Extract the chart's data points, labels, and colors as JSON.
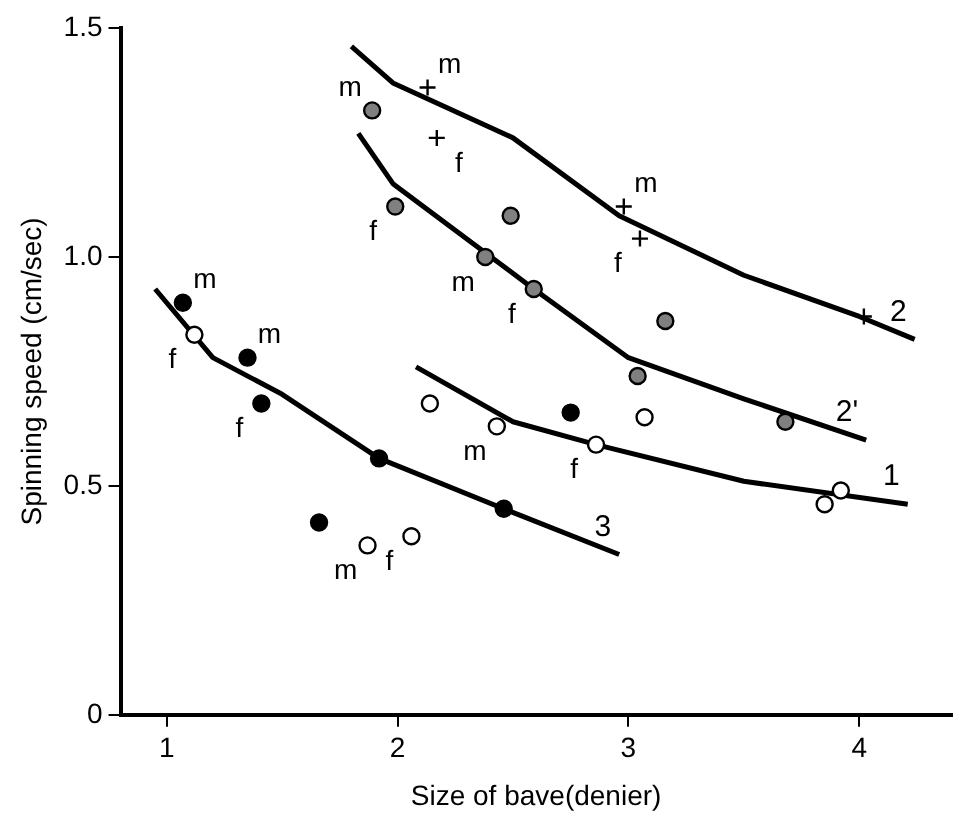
{
  "chart_data": {
    "type": "scatter",
    "xlabel": "Size of bave(denier)",
    "ylabel": "Spinning speed (cm/sec)",
    "xlim": [
      0.8,
      4.4
    ],
    "ylim": [
      0,
      1.5
    ],
    "xticks": [
      1,
      2,
      3,
      4
    ],
    "yticks": [
      0,
      {
        "value": 0.5,
        "label": "0.5"
      },
      {
        "value": 1,
        "label": "1.0"
      },
      1.5
    ],
    "grid": false,
    "legend": false,
    "series": [
      {
        "type": "scatter",
        "marker": "circle",
        "color": "#ffffff",
        "x": [
          1.12,
          1.87,
          2.06,
          2.14,
          2.43,
          2.86,
          3.07,
          3.85,
          3.92
        ],
        "values": [
          0.83,
          0.37,
          0.39,
          0.68,
          0.63,
          0.59,
          0.65,
          0.46,
          0.49
        ]
      },
      {
        "type": "scatter",
        "marker": "cross",
        "color": "#000000",
        "x": [
          2.13,
          2.17,
          2.98,
          3.05,
          4.02
        ],
        "values": [
          1.37,
          1.26,
          1.11,
          1.04,
          0.87
        ]
      },
      {
        "type": "scatter",
        "marker": "circle",
        "color": "#808080",
        "x": [
          1.89,
          1.99,
          2.38,
          2.49,
          2.59,
          3.04,
          3.16,
          3.68
        ],
        "values": [
          1.32,
          1.11,
          1.0,
          1.09,
          0.93,
          0.74,
          0.86,
          0.64
        ]
      },
      {
        "type": "scatter",
        "marker": "circle",
        "color": "#000000",
        "x": [
          1.07,
          1.35,
          1.41,
          1.66,
          1.92,
          2.46,
          2.75
        ],
        "values": [
          0.9,
          0.78,
          0.68,
          0.42,
          0.56,
          0.45,
          0.66
        ]
      },
      {
        "type": "line",
        "name": "1",
        "color": "#000000",
        "x": [
          2.08,
          2.5,
          2.86,
          3.5,
          4.21
        ],
        "values": [
          0.76,
          0.64,
          0.59,
          0.51,
          0.46
        ]
      },
      {
        "type": "line",
        "name": "2",
        "color": "#000000",
        "x": [
          1.8,
          1.98,
          2.5,
          2.96,
          3.5,
          4.0,
          4.24
        ],
        "values": [
          1.46,
          1.38,
          1.26,
          1.09,
          0.96,
          0.87,
          0.82
        ]
      },
      {
        "type": "line",
        "name": "2'",
        "color": "#000000",
        "x": [
          1.83,
          1.98,
          2.59,
          3.0,
          3.5,
          4.03
        ],
        "values": [
          1.27,
          1.16,
          0.93,
          0.78,
          0.69,
          0.6
        ]
      },
      {
        "type": "line",
        "name": "3",
        "color": "#000000",
        "x": [
          0.95,
          1.2,
          1.5,
          1.92,
          2.46,
          2.96
        ],
        "values": [
          0.93,
          0.78,
          0.7,
          0.56,
          0.45,
          0.35
        ]
      }
    ],
    "annotations": [
      {
        "text": "m",
        "x": 1.07,
        "y": 0.9
      },
      {
        "text": "f",
        "x": 1.12,
        "y": 0.83
      },
      {
        "text": "m",
        "x": 1.35,
        "y": 0.78
      },
      {
        "text": "f",
        "x": 1.41,
        "y": 0.68
      },
      {
        "text": "m",
        "x": 1.89,
        "y": 1.32
      },
      {
        "text": "f",
        "x": 1.99,
        "y": 1.11
      },
      {
        "text": "m",
        "x": 2.13,
        "y": 1.37
      },
      {
        "text": "f",
        "x": 2.17,
        "y": 1.26
      },
      {
        "text": "m",
        "x": 2.38,
        "y": 1.0
      },
      {
        "text": "f",
        "x": 2.59,
        "y": 0.93
      },
      {
        "text": "m",
        "x": 2.98,
        "y": 1.11
      },
      {
        "text": "f",
        "x": 3.05,
        "y": 1.04
      },
      {
        "text": "m",
        "x": 1.87,
        "y": 0.37
      },
      {
        "text": "f",
        "x": 2.06,
        "y": 0.39
      },
      {
        "text": "m",
        "x": 2.43,
        "y": 0.63
      },
      {
        "text": "f",
        "x": 2.86,
        "y": 0.59
      }
    ]
  }
}
